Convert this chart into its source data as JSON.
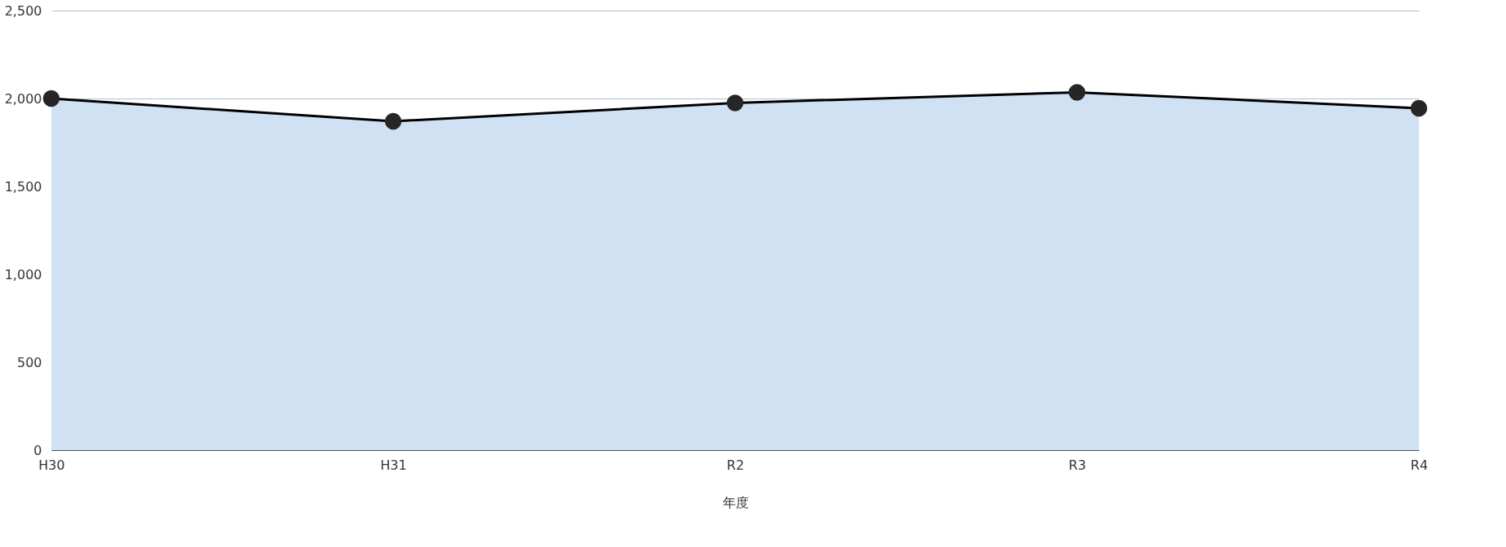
{
  "chart_data": {
    "type": "area",
    "xlabel": "年度",
    "categories": [
      "H30",
      "H31",
      "R2",
      "R3",
      "R4"
    ],
    "series": [
      {
        "color": "#cfe1f2",
        "values": [
          2000,
          1870,
          1975,
          2035,
          1945
        ]
      }
    ],
    "marker": "circle",
    "ylim": [
      0,
      2500
    ],
    "yticks": [
      0,
      {
        "value": 500,
        "label": "500"
      },
      {
        "value": 1000,
        "label": "1,000"
      },
      {
        "value": 1500,
        "label": "1,500"
      },
      {
        "value": 2000,
        "label": "2,000"
      },
      {
        "value": 2500,
        "label": "2,500"
      }
    ],
    "grid": "y"
  }
}
